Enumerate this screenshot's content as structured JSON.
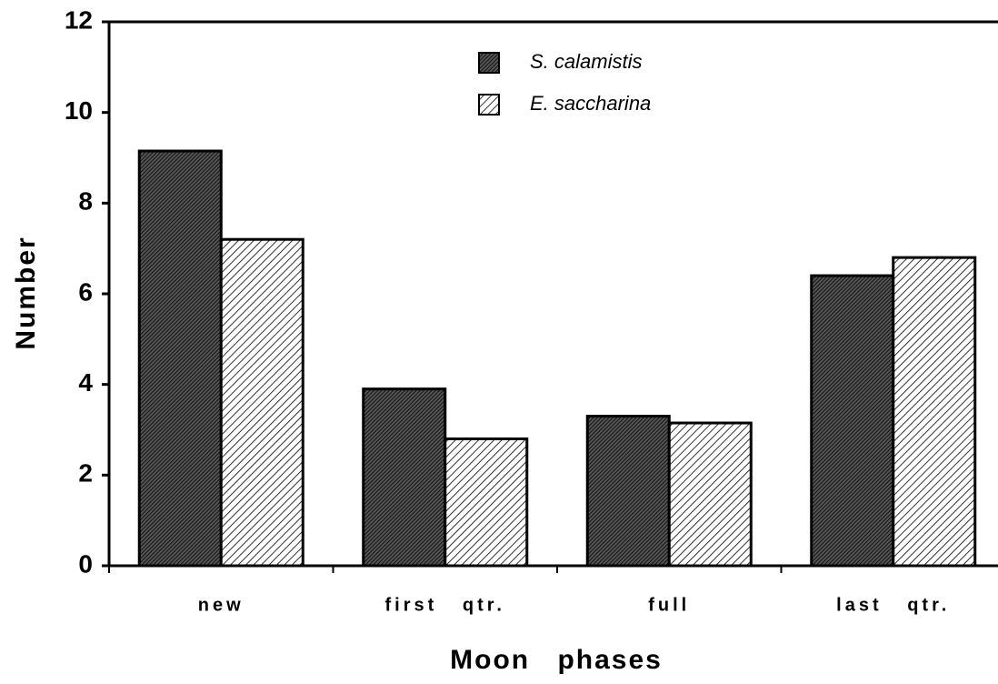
{
  "chart_data": {
    "type": "bar",
    "x_label": "Moon phases",
    "y_label": "Number",
    "categories": [
      "new",
      "first qtr.",
      "full",
      "last qtr."
    ],
    "series": [
      {
        "name": "S. calamistis",
        "color": "#555555",
        "values": [
          9.15,
          3.9,
          3.3,
          6.4
        ]
      },
      {
        "name": "E. saccharina",
        "color": "#ffffff",
        "values": [
          7.2,
          2.8,
          3.15,
          6.8
        ]
      }
    ],
    "ylim": [
      0,
      12
    ],
    "yticks": [
      0,
      2,
      4,
      6,
      8,
      10,
      12
    ],
    "legend": "top"
  }
}
